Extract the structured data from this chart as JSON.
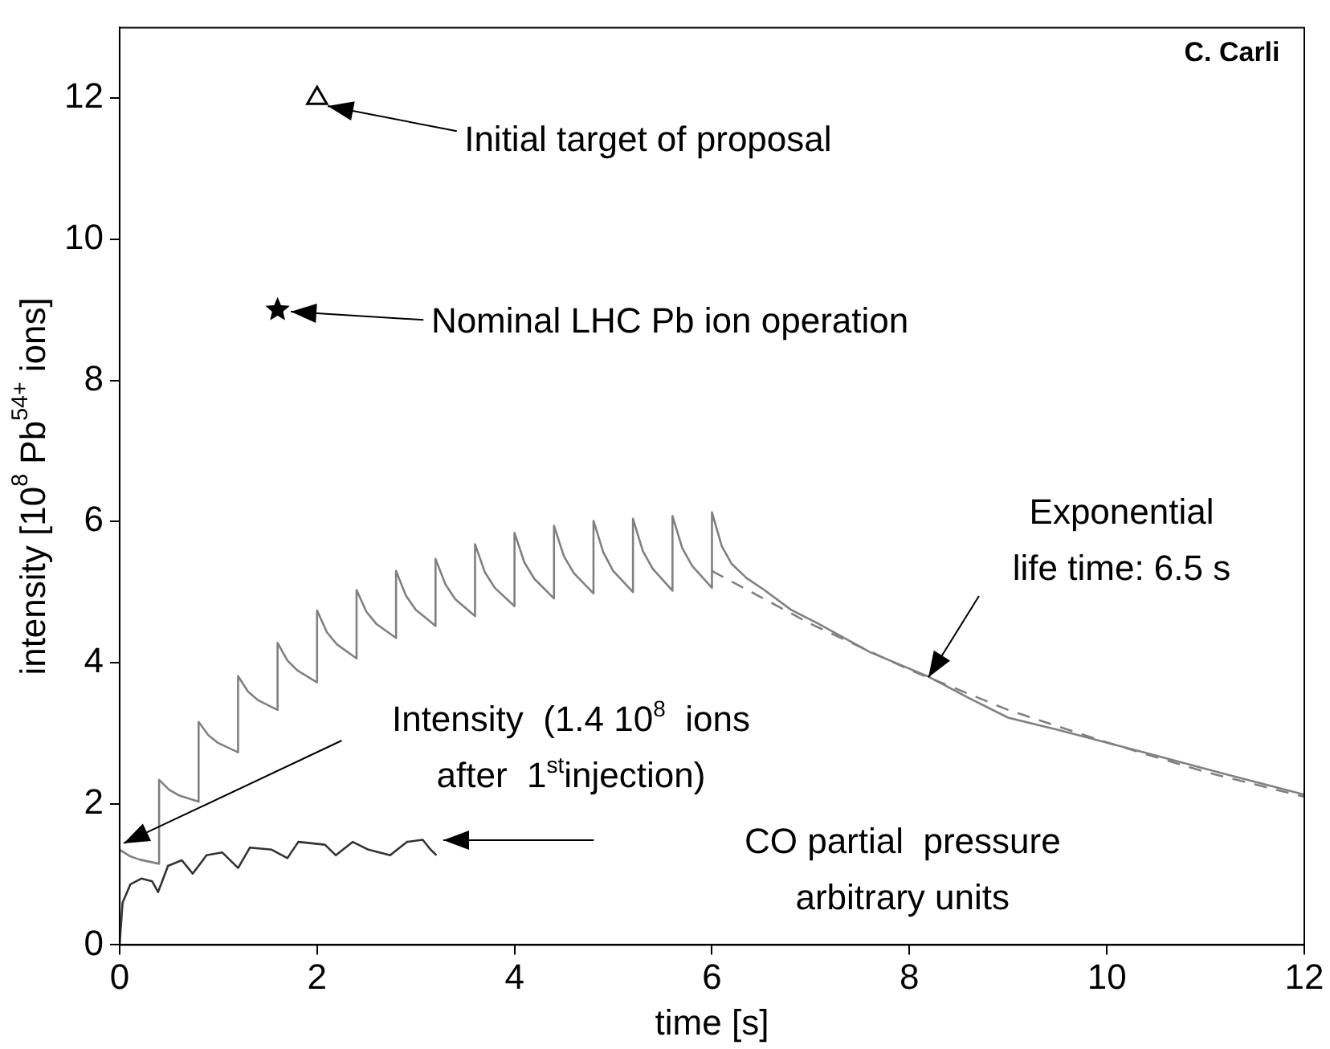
{
  "chart_data": {
    "type": "line",
    "xlabel": "time [s]",
    "ylabel": "intensity [10$^{8}$ Pb$^{54+}$ ions]",
    "xlim": [
      0,
      12
    ],
    "ylim": [
      0,
      13
    ],
    "xticks": [
      0,
      2,
      4,
      6,
      8,
      10,
      12
    ],
    "yticks": [
      0,
      2,
      4,
      6,
      8,
      10,
      12
    ],
    "marker": "none",
    "series": [
      {
        "color": "#808080",
        "x": [
          0,
          0,
          0.1,
          0.2,
          0.4,
          0.4,
          0.5,
          0.6,
          0.8,
          0.8,
          0.9,
          1.0,
          1.2,
          1.2,
          1.3,
          1.4,
          1.6,
          1.6,
          1.7,
          1.8,
          2.0,
          2.0,
          2.1,
          2.2,
          2.4,
          2.4,
          2.5,
          2.6,
          2.8,
          2.8,
          2.9,
          3.0,
          3.2,
          3.2,
          3.3,
          3.4,
          3.6,
          3.6,
          3.7,
          3.8,
          4.0,
          4.0,
          4.1,
          4.2,
          4.4,
          4.4,
          4.5,
          4.6,
          4.8,
          4.8,
          4.9,
          5.0,
          5.2,
          5.2,
          5.3,
          5.4,
          5.6,
          5.6,
          5.7,
          5.8,
          6.0,
          6.0,
          6.1,
          6.2,
          6.35,
          6.53,
          6.8,
          7.08,
          7.6,
          8.18,
          8.6,
          9.0,
          9.5,
          10.37,
          11.2,
          12
        ],
        "values": [
          0,
          1.35,
          1.26,
          1.21,
          1.15,
          2.34,
          2.2,
          2.12,
          2.03,
          3.16,
          2.97,
          2.86,
          2.73,
          3.81,
          3.59,
          3.47,
          3.33,
          4.28,
          4.03,
          3.89,
          3.72,
          4.74,
          4.43,
          4.26,
          4.06,
          5.03,
          4.72,
          4.55,
          4.35,
          5.3,
          4.95,
          4.75,
          4.52,
          5.47,
          5.11,
          4.9,
          4.66,
          5.68,
          5.28,
          5.06,
          4.8,
          5.84,
          5.42,
          5.19,
          4.91,
          5.94,
          5.51,
          5.27,
          4.98,
          6.01,
          5.56,
          5.3,
          5.0,
          6.04,
          5.58,
          5.33,
          5.02,
          6.08,
          5.62,
          5.37,
          5.06,
          6.13,
          5.65,
          5.4,
          5.2,
          5.03,
          4.75,
          4.55,
          4.15,
          3.81,
          3.5,
          3.22,
          3.05,
          2.73,
          2.42,
          2.13
        ]
      },
      {
        "color": "#808080",
        "line_style": "dashed",
        "x": [
          6,
          7,
          8,
          9,
          10,
          11,
          12
        ],
        "values": [
          5.3,
          4.55,
          3.9,
          3.33,
          2.87,
          2.45,
          2.1
        ]
      },
      {
        "color": "#333333",
        "x": [
          0,
          0.03,
          0.11,
          0.22,
          0.33,
          0.39,
          0.49,
          0.63,
          0.74,
          0.88,
          1.04,
          1.2,
          1.32,
          1.54,
          1.7,
          1.81,
          2.08,
          2.19,
          2.36,
          2.52,
          2.74,
          2.91,
          3.07,
          3.15,
          3.21
        ],
        "values": [
          0,
          0.6,
          0.86,
          0.94,
          0.9,
          0.75,
          1.12,
          1.2,
          1.01,
          1.27,
          1.31,
          1.09,
          1.38,
          1.35,
          1.23,
          1.46,
          1.42,
          1.27,
          1.46,
          1.35,
          1.27,
          1.46,
          1.49,
          1.35,
          1.27
        ]
      },
      {
        "type": "scatter",
        "marker": "triangle",
        "color": "#000000",
        "x": [
          2
        ],
        "values": [
          12
        ]
      },
      {
        "type": "scatter",
        "marker": "star",
        "color": "#000000",
        "x": [
          1.6
        ],
        "values": [
          9
        ]
      }
    ],
    "annotations": [
      {
        "text": "Initial target of proposal",
        "x": 2.1,
        "y": 11.9
      },
      "Nominal LHC Pb ion operation",
      "Intensity  (1.4 10$^{8}$  ions\nafter  1$^{st}$injection)",
      "CO partial  pressure\narbitrary units",
      {
        "text": "Exponential\nlife time: 6.5 s",
        "x": 8.2,
        "y": 3.8
      },
      "C. Carli"
    ]
  }
}
